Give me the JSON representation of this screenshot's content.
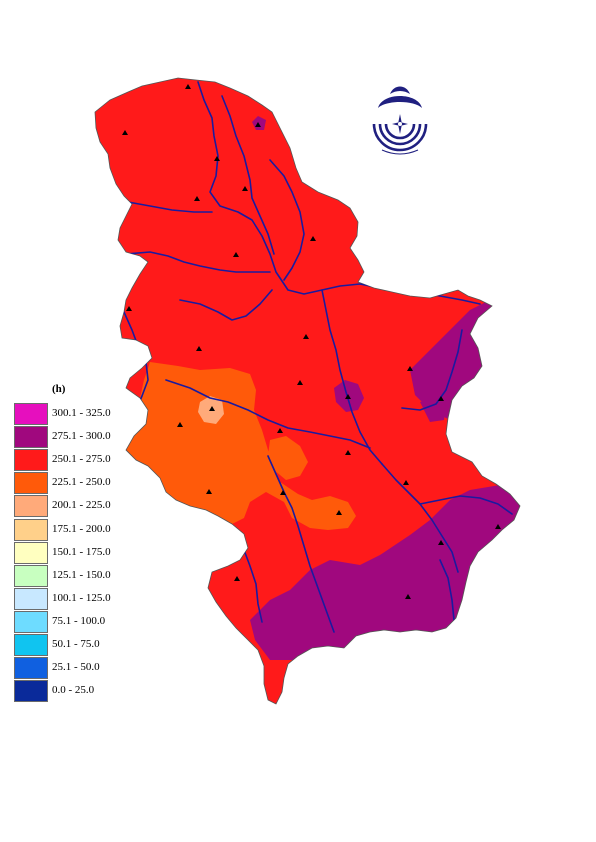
{
  "legend": {
    "unit": "(h)",
    "classes": [
      {
        "label": "300.1 - 325.0",
        "color": "#e60fbe"
      },
      {
        "label": "275.1 - 300.0",
        "color": "#a0087e"
      },
      {
        "label": "250.1 - 275.0",
        "color": "#ff1a1a"
      },
      {
        "label": "225.1 - 250.0",
        "color": "#ff5a0a"
      },
      {
        "label": "200.1 - 225.0",
        "color": "#ffaa7a"
      },
      {
        "label": "175.1 - 200.0",
        "color": "#ffd08a"
      },
      {
        "label": "150.1 - 175.0",
        "color": "#ffffc0"
      },
      {
        "label": "125.1 - 150.0",
        "color": "#c8ffc0"
      },
      {
        "label": "100.1 - 125.0",
        "color": "#c8e8ff"
      },
      {
        "label": "75.1 - 100.0",
        "color": "#6edcff"
      },
      {
        "label": "50.1 - 75.0",
        "color": "#10c4f0"
      },
      {
        "label": "25.1 - 50.0",
        "color": "#1060e0"
      },
      {
        "label": "0.0 - 25.0",
        "color": "#0a2a9a"
      }
    ]
  },
  "colors": {
    "river": "#1a1aa0",
    "station_marker": "#000000",
    "logo": "#202080"
  }
}
